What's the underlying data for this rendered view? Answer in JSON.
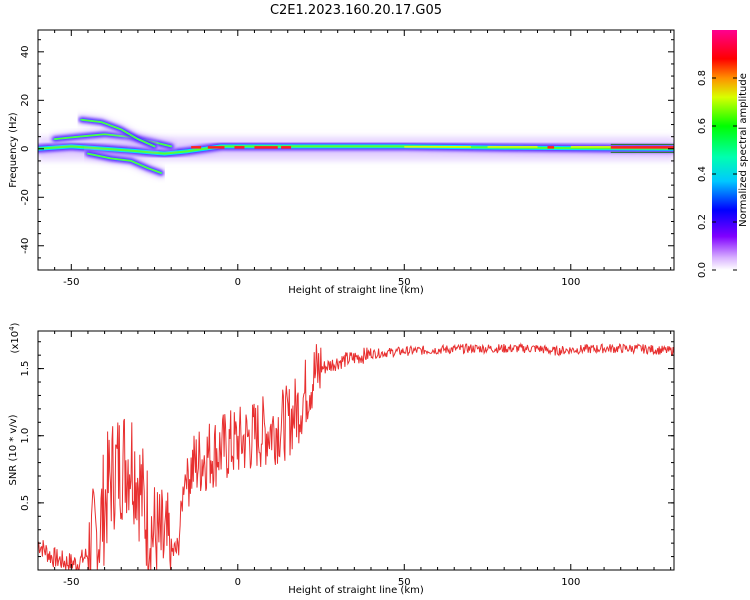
{
  "figure": {
    "title": "C2E1.2023.160.20.17.G05"
  },
  "chart_data": [
    {
      "type": "heatmap",
      "xlabel": "Height of straight line (km)",
      "ylabel": "Frequency (Hz)",
      "xlim": [
        -60,
        131
      ],
      "ylim": [
        -50,
        49
      ],
      "xticks": [
        -50,
        0,
        50,
        100
      ],
      "yticks": [
        -40,
        -20,
        0,
        20,
        40
      ],
      "grid": false,
      "colorbar": {
        "label": "Normalized spectral amplitude",
        "range": [
          0.0,
          1.0
        ],
        "ticks": [
          0.0,
          0.2,
          0.4,
          0.6,
          0.8
        ],
        "colormap": [
          "#ff0090",
          "#ff0000",
          "#ffff00",
          "#00ff00",
          "#00ffff",
          "#0000ff",
          "#8000ff",
          "#ffffff"
        ]
      },
      "traces": [
        {
          "x": [
            -60,
            -50,
            -40,
            -30,
            -22,
            -15,
            -10,
            -5,
            0,
            10,
            20,
            50,
            80,
            100,
            131
          ],
          "y": [
            0,
            1,
            0,
            -1,
            -2,
            -1,
            0,
            1,
            1,
            1,
            1,
            1,
            0.5,
            0.3,
            0
          ]
        },
        {
          "x": [
            -55,
            -48,
            -40,
            -33,
            -26,
            -20
          ],
          "y": [
            4,
            5,
            6,
            5,
            3,
            1
          ]
        },
        {
          "x": [
            -47,
            -41,
            -35,
            -30,
            -25
          ],
          "y": [
            12,
            11,
            8,
            4,
            1
          ]
        },
        {
          "x": [
            -45,
            -38,
            -32,
            -27,
            -23
          ],
          "y": [
            -2,
            -4,
            -5,
            -8,
            -10
          ]
        }
      ]
    },
    {
      "type": "line",
      "xlabel": "Height of straight line (km)",
      "ylabel": "SNR (10 * v/v)",
      "yscale_label": "(x10",
      "yscale_exp": "4",
      "yscale_close": ")",
      "xlim": [
        -60,
        131
      ],
      "ylim": [
        0,
        1.78
      ],
      "xticks": [
        -50,
        0,
        50,
        100
      ],
      "yticks": [
        0.5,
        1.0,
        1.5
      ],
      "color": "#e83030",
      "series": [
        {
          "x": [
            -60,
            -56,
            -52,
            -48,
            -45,
            -42,
            -40,
            -38,
            -35,
            -32,
            -30,
            -28,
            -25,
            -22,
            -20,
            -18,
            -16,
            -14,
            -12,
            -10,
            -5,
            0,
            5,
            10,
            15,
            18,
            20,
            22,
            25,
            28,
            30,
            35,
            40,
            50,
            60,
            70,
            80,
            90,
            95,
            100,
            110,
            120,
            131
          ],
          "y": [
            0.2,
            0.1,
            0.06,
            0.05,
            0.12,
            0.25,
            0.5,
            0.7,
            0.8,
            0.85,
            0.7,
            0.45,
            0.25,
            0.15,
            0.12,
            0.15,
            0.7,
            0.75,
            0.8,
            0.85,
            0.9,
            0.95,
            1.0,
            1.05,
            1.1,
            1.2,
            1.3,
            1.42,
            1.5,
            1.53,
            1.55,
            1.58,
            1.61,
            1.63,
            1.64,
            1.65,
            1.65,
            1.65,
            1.63,
            1.64,
            1.65,
            1.65,
            1.63
          ]
        }
      ]
    }
  ]
}
